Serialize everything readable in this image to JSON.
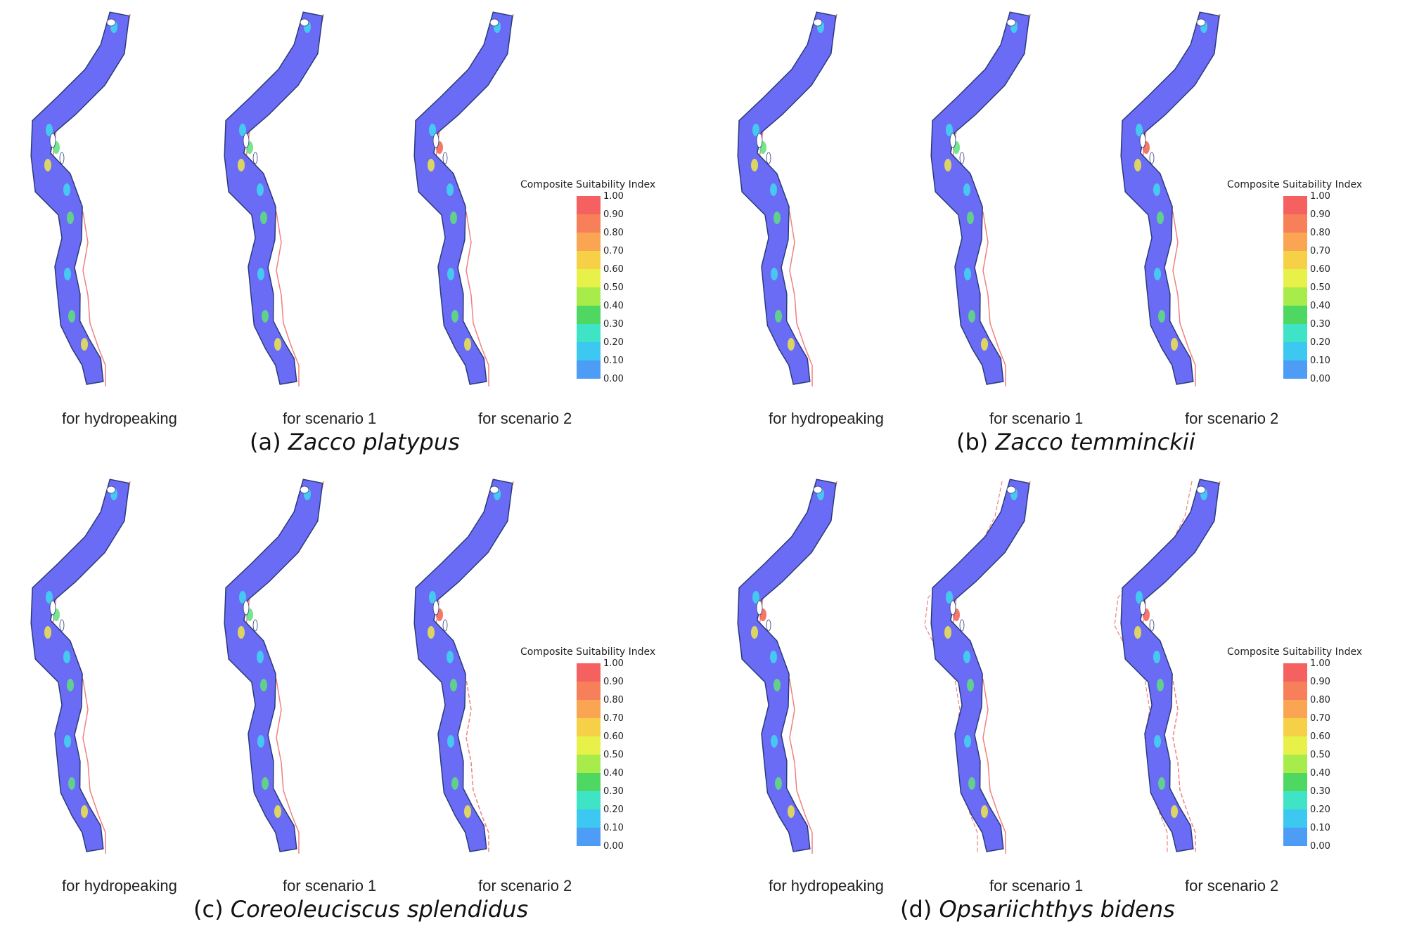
{
  "panels": [
    {
      "id": "a",
      "letter": "(a)",
      "species": "Zacco platypus",
      "labels": [
        "for hydropeaking",
        "for scenario 1",
        "for scenario 2"
      ],
      "legend_title": "Composite Suitability Index"
    },
    {
      "id": "b",
      "letter": "(b)",
      "species": "Zacco temminckii",
      "labels": [
        "for hydropeaking",
        "for scenario 1",
        "for scenario 2"
      ],
      "legend_title": "Composite Suitability Index"
    },
    {
      "id": "c",
      "letter": "(c)",
      "species": "Coreoleuciscus splendidus",
      "labels": [
        "for hydropeaking",
        "for scenario 1",
        "for scenario 2"
      ],
      "legend_title": "Composite Suitability Index"
    },
    {
      "id": "d",
      "letter": "(d)",
      "species": "Opsariichthys bidens",
      "labels": [
        "for hydropeaking",
        "for scenario 1",
        "for scenario 2"
      ],
      "legend_title": "Composite Suitability Index"
    }
  ],
  "legend": {
    "ticks": [
      "1.00",
      "0.90",
      "0.80",
      "0.70",
      "0.60",
      "0.50",
      "0.40",
      "0.30",
      "0.20",
      "0.10",
      "0.00"
    ],
    "colors": [
      "#f56060",
      "#f7805a",
      "#f9a552",
      "#f6d148",
      "#e8f04a",
      "#a8ec4c",
      "#4fd861",
      "#3fe3c6",
      "#3cc8f0",
      "#4d9cf5",
      "#6a6cf2"
    ]
  },
  "colors": {
    "river_fill": "#6a6cf5",
    "river_edge": "#2a3a78",
    "boundary": "#f08080",
    "accent_green": "#5fe07a",
    "accent_yellow": "#f0e84a",
    "accent_red": "#f06050",
    "accent_cyan": "#40d8f0"
  }
}
